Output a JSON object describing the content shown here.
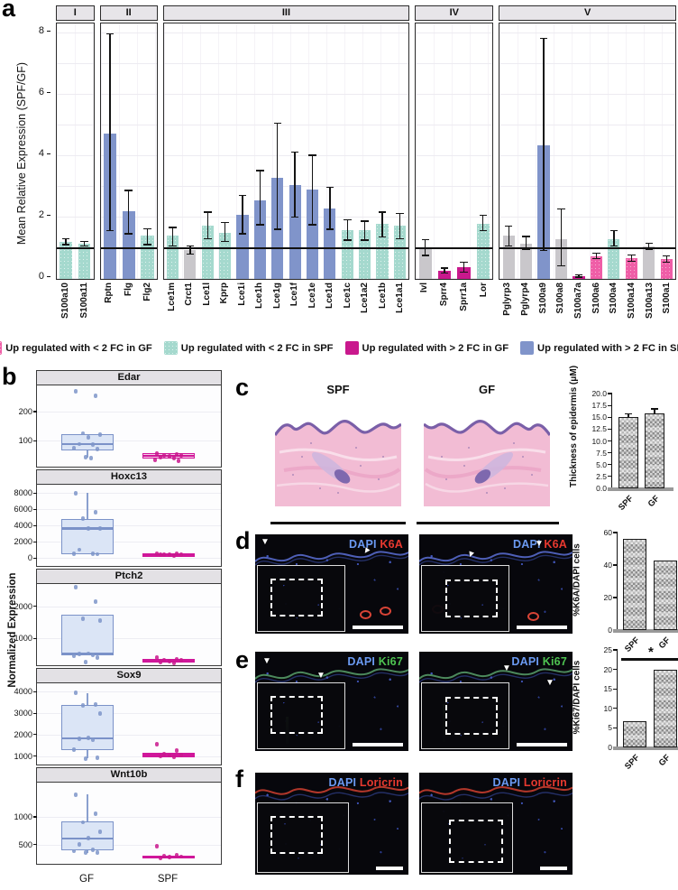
{
  "panels": {
    "a": {
      "label": "a"
    },
    "b": {
      "label": "b"
    },
    "c": {
      "label": "c",
      "img_titles": [
        "SPF",
        "GF"
      ]
    },
    "d": {
      "label": "d",
      "stains": [
        "DAPI",
        "K6A"
      ]
    },
    "e": {
      "label": "e",
      "stains": [
        "DAPI",
        "Ki67"
      ]
    },
    "f": {
      "label": "f",
      "stains": [
        "DAPI",
        "Loricrin"
      ]
    }
  },
  "colors": {
    "blue": "#8094ca",
    "teal": "#a5d9ce",
    "pink": "#ef5ea7",
    "magenta": "#c9188d",
    "gray": "#c9c7cb",
    "box_gf_fill": "#dbe5f6",
    "box_gf_border": "#7b92c8",
    "box_spf_fill": "#f6d0e8",
    "box_spf_border": "#d0179a",
    "dapi_blue": "#6b9af2",
    "k6a_red": "#e8392f",
    "ki67_green": "#4ec351",
    "loricrin_red": "#e8392f"
  },
  "legend": [
    {
      "label": "Up regulated with < 2 FC in GF",
      "color": "pink"
    },
    {
      "label": "Up regulated with < 2 FC in SPF",
      "color": "teal"
    },
    {
      "label": "Up regulated with > 2 FC in GF",
      "color": "magenta"
    },
    {
      "label": "Up regulated with > 2 FC in SPF",
      "color": "blue"
    }
  ],
  "chart_data": [
    {
      "id": "a",
      "type": "bar",
      "ylabel": "Mean Relative Expression (SPF/GF)",
      "ylim": [
        0,
        8.3
      ],
      "yticks": [
        0,
        2,
        4,
        6,
        8
      ],
      "reference_line": 1,
      "groups": [
        {
          "label": "I",
          "bars": [
            {
              "gene": "S100a10",
              "value": 1.2,
              "lo": 1.1,
              "hi": 1.32,
              "color": "teal"
            },
            {
              "gene": "S100a11",
              "value": 1.15,
              "lo": 1.05,
              "hi": 1.25,
              "color": "teal"
            }
          ]
        },
        {
          "label": "II",
          "bars": [
            {
              "gene": "Rptn",
              "value": 4.75,
              "lo": 1.55,
              "hi": 8.0,
              "color": "blue"
            },
            {
              "gene": "Flg",
              "value": 2.2,
              "lo": 1.45,
              "hi": 2.9,
              "color": "blue"
            },
            {
              "gene": "Flg2",
              "value": 1.4,
              "lo": 1.1,
              "hi": 1.65,
              "color": "teal"
            }
          ]
        },
        {
          "label": "III",
          "bars": [
            {
              "gene": "Lce1m",
              "value": 1.4,
              "lo": 1.05,
              "hi": 1.7,
              "color": "teal"
            },
            {
              "gene": "Crct1",
              "value": 0.95,
              "lo": 0.8,
              "hi": 1.1,
              "color": "gray"
            },
            {
              "gene": "Lce1l",
              "value": 1.75,
              "lo": 1.3,
              "hi": 2.2,
              "color": "teal"
            },
            {
              "gene": "Kprp",
              "value": 1.5,
              "lo": 1.2,
              "hi": 1.85,
              "color": "teal"
            },
            {
              "gene": "Lce1i",
              "value": 2.1,
              "lo": 1.45,
              "hi": 2.75,
              "color": "blue"
            },
            {
              "gene": "Lce1h",
              "value": 2.55,
              "lo": 1.75,
              "hi": 3.55,
              "color": "blue"
            },
            {
              "gene": "Lce1g",
              "value": 3.3,
              "lo": 1.6,
              "hi": 5.1,
              "color": "blue"
            },
            {
              "gene": "Lce1f",
              "value": 3.05,
              "lo": 2.0,
              "hi": 4.15,
              "color": "blue"
            },
            {
              "gene": "Lce1e",
              "value": 2.9,
              "lo": 1.75,
              "hi": 4.05,
              "color": "blue"
            },
            {
              "gene": "Lce1d",
              "value": 2.3,
              "lo": 1.6,
              "hi": 3.0,
              "color": "blue"
            },
            {
              "gene": "Lce1c",
              "value": 1.6,
              "lo": 1.25,
              "hi": 1.95,
              "color": "teal"
            },
            {
              "gene": "Lce1a2",
              "value": 1.6,
              "lo": 1.25,
              "hi": 1.9,
              "color": "teal"
            },
            {
              "gene": "Lce1b",
              "value": 1.8,
              "lo": 1.35,
              "hi": 2.2,
              "color": "teal"
            },
            {
              "gene": "Lce1a1",
              "value": 1.75,
              "lo": 1.3,
              "hi": 2.15,
              "color": "teal"
            }
          ]
        },
        {
          "label": "IV",
          "bars": [
            {
              "gene": "Ivl",
              "value": 0.97,
              "lo": 0.75,
              "hi": 1.3,
              "color": "gray"
            },
            {
              "gene": "Sprr4",
              "value": 0.27,
              "lo": 0.17,
              "hi": 0.37,
              "color": "magenta"
            },
            {
              "gene": "Sprr1a",
              "value": 0.38,
              "lo": 0.2,
              "hi": 0.56,
              "color": "magenta"
            },
            {
              "gene": "Lor",
              "value": 1.8,
              "lo": 1.55,
              "hi": 2.1,
              "color": "teal"
            }
          ]
        },
        {
          "label": "V",
          "bars": [
            {
              "gene": "Pglyrp3",
              "value": 1.4,
              "lo": 1.05,
              "hi": 1.75,
              "color": "gray"
            },
            {
              "gene": "Pglyrp4",
              "value": 1.15,
              "lo": 0.95,
              "hi": 1.4,
              "color": "gray"
            },
            {
              "gene": "S100a9",
              "value": 4.35,
              "lo": 0.9,
              "hi": 7.85,
              "color": "blue"
            },
            {
              "gene": "S100a8",
              "value": 1.3,
              "lo": 0.4,
              "hi": 2.3,
              "color": "gray"
            },
            {
              "gene": "S100a7a",
              "value": 0.1,
              "lo": 0.04,
              "hi": 0.16,
              "color": "magenta"
            },
            {
              "gene": "S100a6",
              "value": 0.75,
              "lo": 0.65,
              "hi": 0.86,
              "color": "pink"
            },
            {
              "gene": "S100a4",
              "value": 1.3,
              "lo": 1.05,
              "hi": 1.6,
              "color": "teal"
            },
            {
              "gene": "S100a14",
              "value": 0.67,
              "lo": 0.55,
              "hi": 0.8,
              "color": "pink"
            },
            {
              "gene": "S100a13",
              "value": 1.05,
              "lo": 0.95,
              "hi": 1.18,
              "color": "gray"
            },
            {
              "gene": "S100a1",
              "value": 0.64,
              "lo": 0.52,
              "hi": 0.76,
              "color": "pink"
            }
          ]
        }
      ]
    },
    {
      "id": "b",
      "type": "boxplot",
      "ylabel": "Normalized Expression",
      "x_categories": [
        "GF",
        "SPF"
      ],
      "facets": [
        {
          "gene": "Edar",
          "yticks": [
            "100",
            "200"
          ],
          "ylim": [
            10,
            290
          ],
          "GF": {
            "q1": 65,
            "median": 88,
            "q3": 123,
            "whisker_lo": 40,
            "points": [
              270,
              255,
              125,
              120,
              110,
              88,
              85,
              75,
              70,
              42,
              40
            ]
          },
          "SPF": {
            "q1": 38,
            "median": 47,
            "q3": 56,
            "points": [
              55,
              52,
              50,
              48,
              45,
              42,
              40,
              34,
              30
            ]
          }
        },
        {
          "gene": "Hoxc13",
          "yticks": [
            "0",
            "2000",
            "4000",
            "6000",
            "8000"
          ],
          "ylim": [
            -1000,
            9000
          ],
          "GF": {
            "q1": 500,
            "median": 3600,
            "q3": 4750,
            "whisker_hi": 7950,
            "points": [
              7950,
              5600,
              4800,
              3650,
              3600,
              1000,
              520,
              480,
              450
            ]
          },
          "SPF": {
            "q1": 300,
            "median": 400,
            "q3": 500,
            "points": [
              500,
              460,
              430,
              400,
              380,
              350,
              300
            ]
          }
        },
        {
          "gene": "Ptch2",
          "yticks": [
            "1000",
            "2000"
          ],
          "ylim": [
            150,
            2700
          ],
          "GF": {
            "q1": 450,
            "median": 520,
            "q3": 1730,
            "points": [
              2600,
              2150,
              1600,
              1550,
              520,
              500,
              480,
              450,
              380,
              250
            ]
          },
          "SPF": {
            "q1": 230,
            "median": 290,
            "q3": 350,
            "points": [
              380,
              350,
              320,
              300,
              280,
              260,
              230
            ]
          }
        },
        {
          "gene": "Sox9",
          "yticks": [
            "1000",
            "2000",
            "3000",
            "4000"
          ],
          "ylim": [
            600,
            4400
          ],
          "GF": {
            "q1": 1280,
            "median": 1830,
            "q3": 3400,
            "whisker_hi": 3950,
            "whisker_lo": 880,
            "points": [
              3950,
              3420,
              3380,
              3000,
              1830,
              1800,
              1750,
              1280,
              900,
              880
            ]
          },
          "SPF": {
            "q1": 950,
            "median": 1050,
            "q3": 1150,
            "points": [
              1550,
              1250,
              1100,
              1060,
              1020,
              980,
              950
            ]
          }
        },
        {
          "gene": "Wnt10b",
          "yticks": [
            "500",
            "1000"
          ],
          "ylim": [
            150,
            1620
          ],
          "GF": {
            "q1": 390,
            "median": 610,
            "q3": 920,
            "whisker_hi": 1400,
            "whisker_lo": 350,
            "points": [
              1400,
              1050,
              900,
              730,
              610,
              500,
              400,
              380,
              360,
              350
            ]
          },
          "SPF": {
            "q1": 250,
            "median": 275,
            "q3": 300,
            "points": [
              470,
              300,
              290,
              280,
              270,
              260
            ]
          }
        }
      ]
    },
    {
      "id": "c",
      "type": "bar",
      "ylabel": "Thickness of epidermis (μM)",
      "ymax": 20,
      "yticks": [
        "0.0",
        "2.5",
        "5.0",
        "7.5",
        "10.0",
        "12.5",
        "15.0",
        "17.5",
        "20.0"
      ],
      "categories": [
        "SPF",
        "GF"
      ],
      "values": [
        15.0,
        15.8
      ],
      "errors_hi": [
        15.9,
        16.9
      ]
    },
    {
      "id": "d",
      "type": "bar",
      "ylabel": "%K6A/DAPI cells",
      "ymax": 60,
      "yticks": [
        "0",
        "20",
        "40",
        "60"
      ],
      "categories": [
        "SPF",
        "GF"
      ],
      "values": [
        56,
        43
      ]
    },
    {
      "id": "e",
      "type": "bar",
      "ylabel": "%Ki67/DAPI cells",
      "ymax": 25,
      "yticks": [
        "0",
        "5",
        "10",
        "15",
        "20",
        "25"
      ],
      "categories": [
        "SPF",
        "GF"
      ],
      "values": [
        6.7,
        20
      ],
      "significance": "*",
      "significance_y": 22.3
    }
  ]
}
